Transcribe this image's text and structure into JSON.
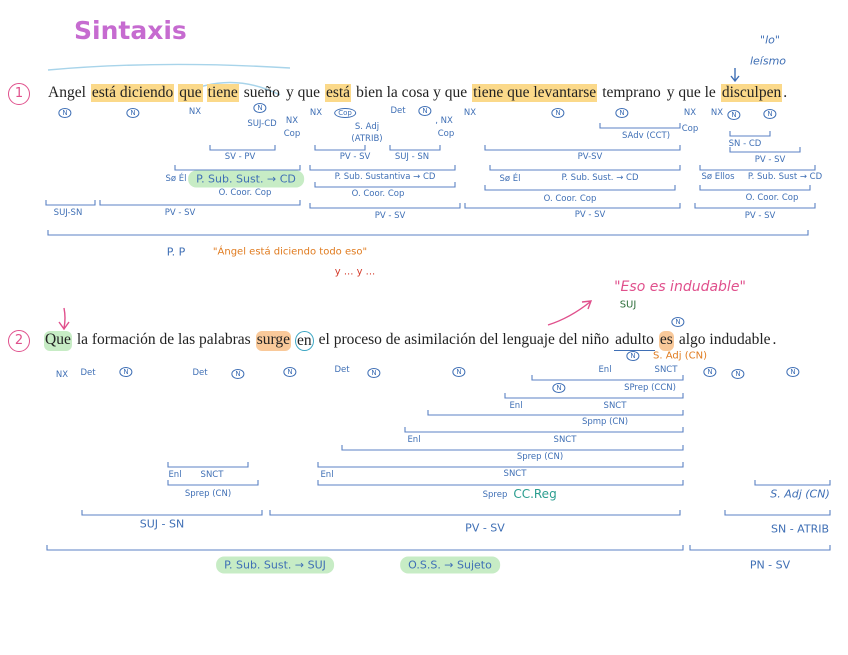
{
  "title": "Sintaxis",
  "leismo": {
    "quote": "\"lo\"",
    "note": "leísmo"
  },
  "sentence_1": {
    "number": "1",
    "words": [
      "Angel",
      "está diciendo",
      "que",
      "tiene",
      "sueño",
      "y que",
      "está",
      "bien la cosa y que",
      "tiene que levantarse",
      "temprano",
      "y que le",
      "disculpen",
      "."
    ],
    "labels": [
      "N",
      "N",
      "NX",
      "N",
      "SUJ-CD",
      "NX",
      "Cop",
      "NX",
      "Cop",
      "S. Adj",
      "(ATRIB)",
      "Det",
      "N",
      ", NX",
      "Cop",
      "NX",
      "N",
      "N",
      "SAdv (CCT)",
      "NX",
      "Cop",
      "NX",
      "N",
      "N",
      "SN - CD",
      "SV - PV",
      "PV - SV",
      "SUJ - SN",
      "PV-SV",
      "PV - SV",
      "Sø Él",
      "P. Sub. Sust. → CD",
      "P. Sub. Sustantiva → CD",
      "Sø Él",
      "P. Sub. Sust. → CD",
      "Sø Ellos",
      "P. Sub. Sust → CD",
      "O. Coor. Cop",
      "O. Coor. Cop",
      "O. Coor. Cop",
      "O. Coor. Cop",
      "SUJ-SN",
      "PV - SV",
      "PV - SV",
      "PV - SV",
      "PV - SV",
      "P. P",
      "\"Ángel está diciendo todo eso\"",
      "y ... y ..."
    ]
  },
  "sentence_2": {
    "number": "2",
    "words": [
      "Que",
      "la formación de las palabras",
      "surge",
      "en",
      "el proceso de asimilación del lenguaje del niño",
      "adulto",
      "es",
      "algo indudable",
      "."
    ],
    "labels": [
      "NX",
      "Det",
      "N",
      "Det",
      "N",
      "N",
      "Det",
      "N",
      "N",
      "Enl",
      "N",
      "SNCT",
      "S. Adj (CN)",
      "N",
      "N",
      "N",
      "N",
      "N",
      "SPrep (CCN)",
      "Enl",
      "SNCT",
      "Spmp (CN)",
      "Enl",
      "SNCT",
      "Sprep (CN)",
      "Enl",
      "SNCT",
      "Enl",
      "SNCT",
      "Sprep (CN)",
      "Sprep",
      "CC.Reg",
      "S. Adj (CN)",
      "SUJ - SN",
      "PV - SV",
      "SN - ATRIB",
      "P. Sub. Sust. → SUJ",
      "O.S.S. → Sujeto",
      "PN - SV",
      "\"Eso es indudable\"",
      "SUJ"
    ]
  }
}
